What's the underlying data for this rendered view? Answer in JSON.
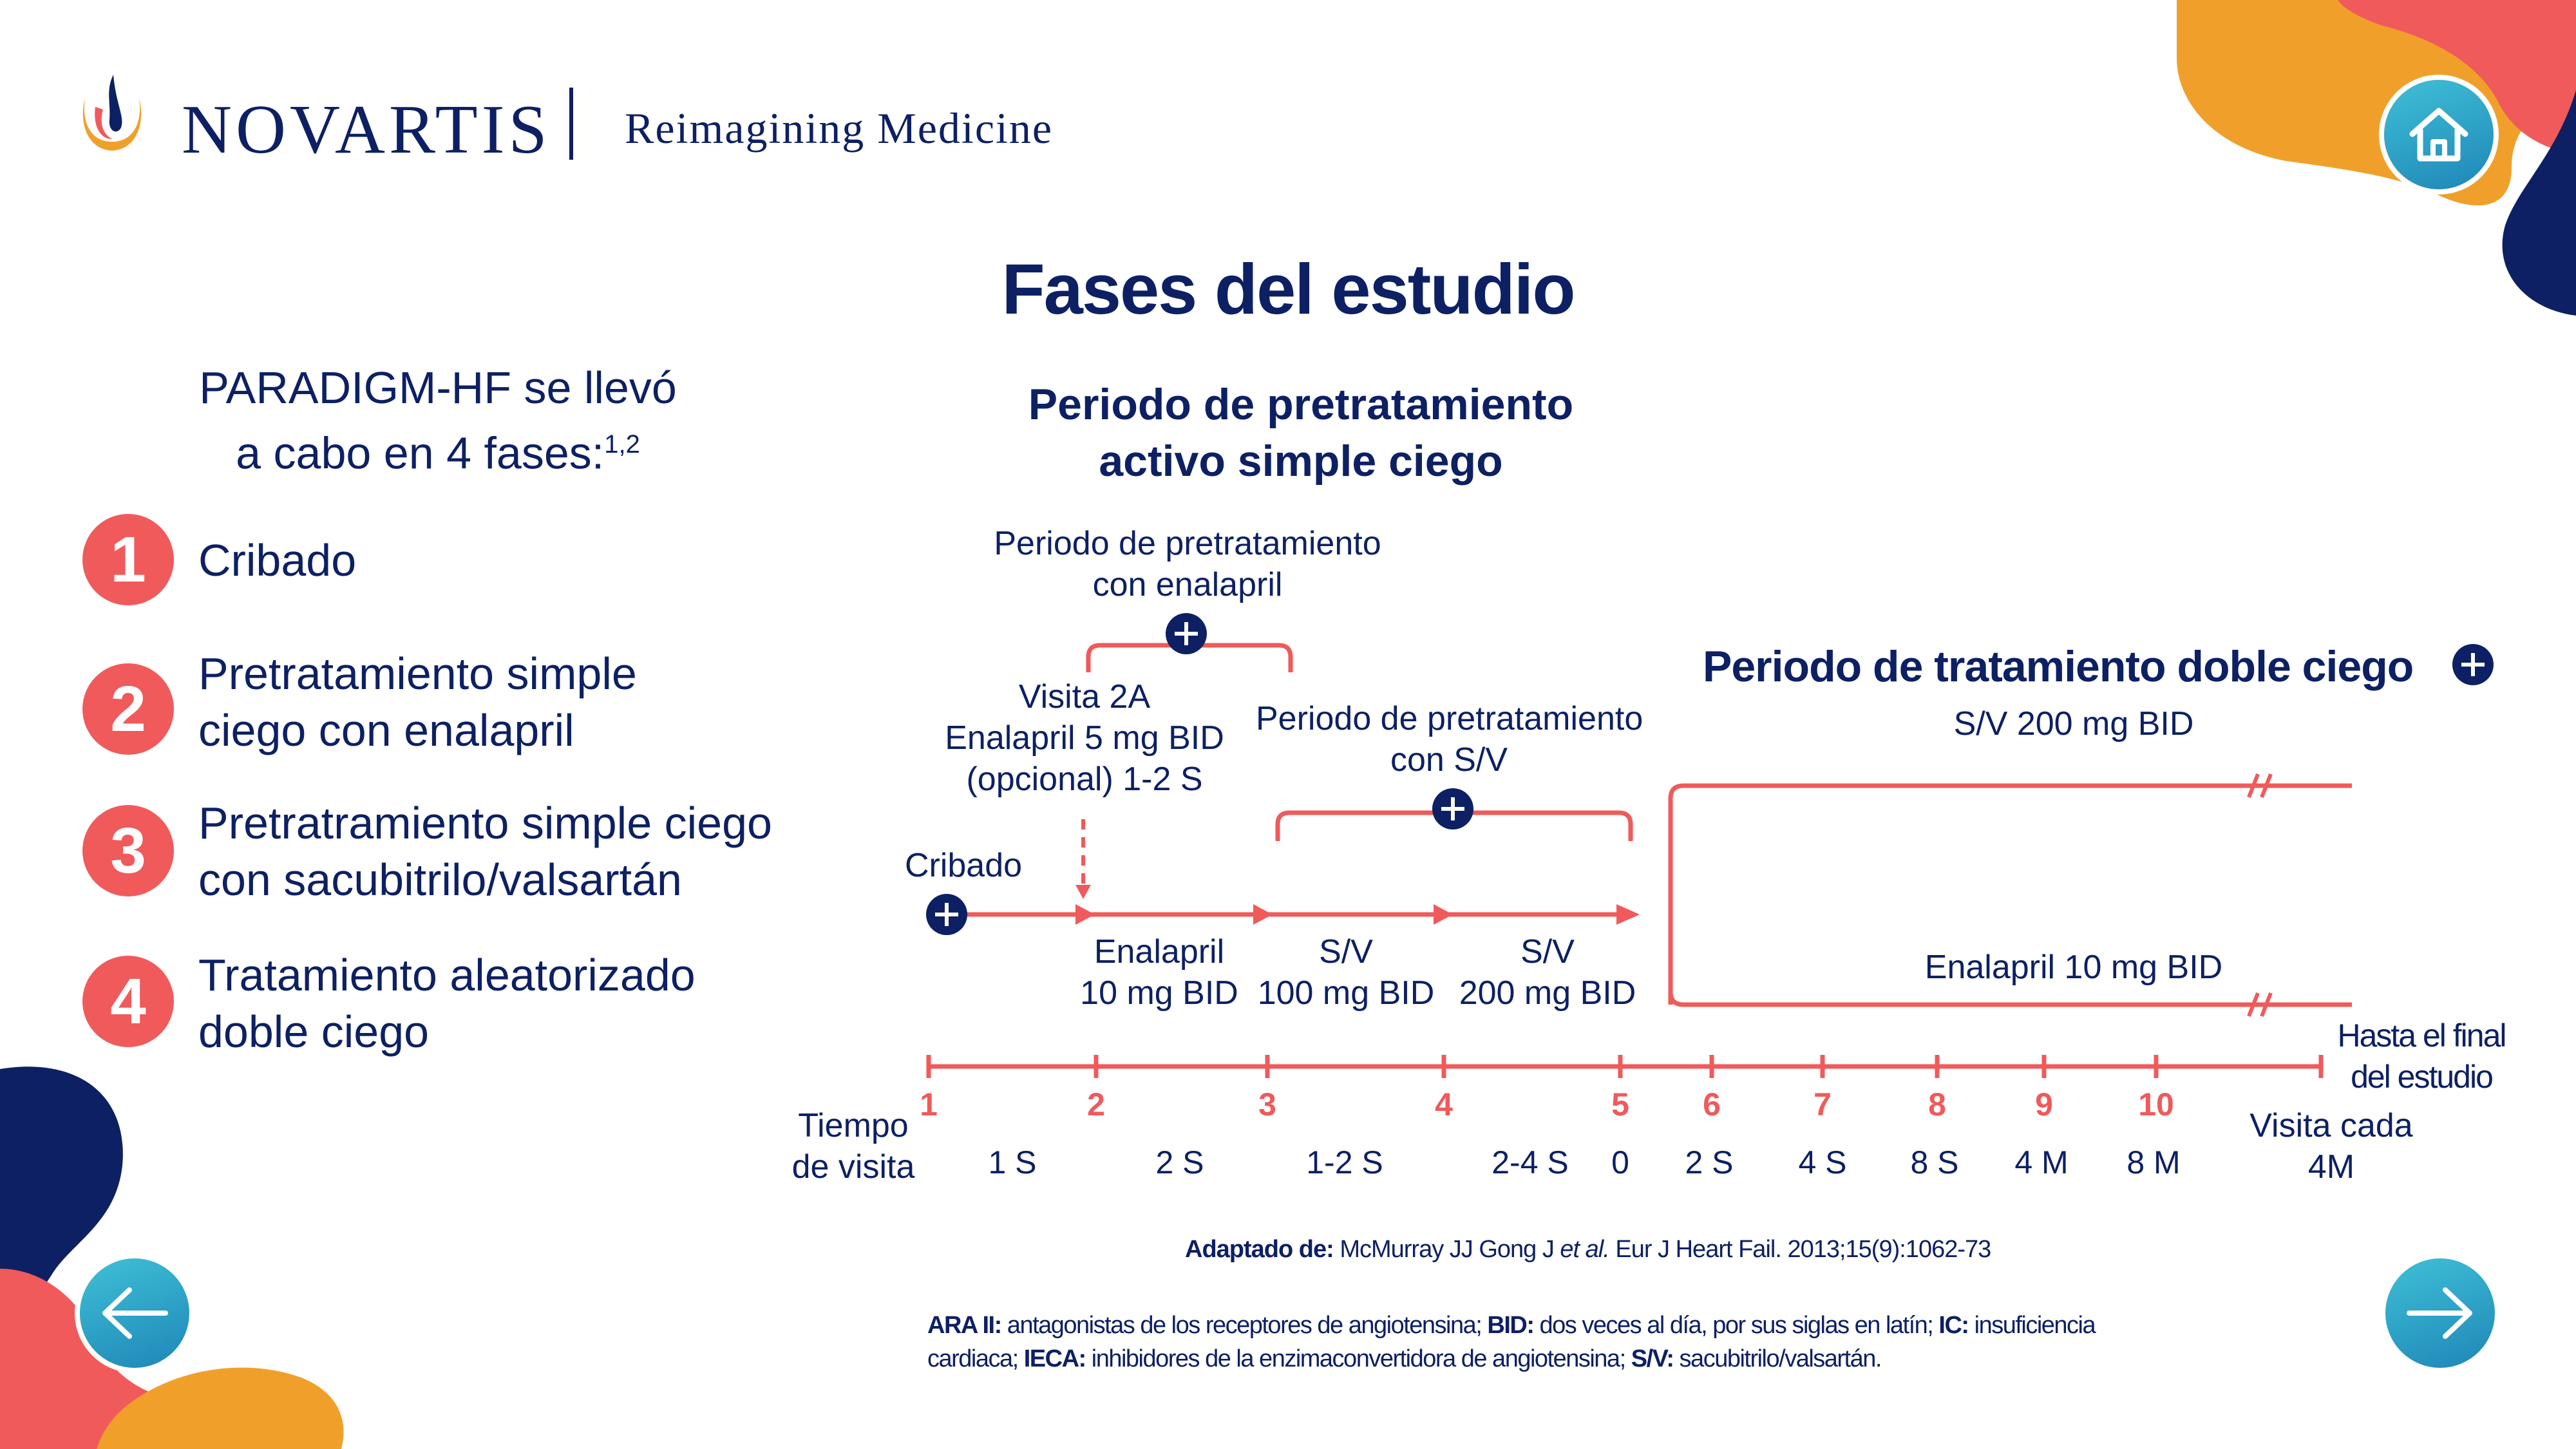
{
  "header": {
    "brand": "NOVARTIS",
    "separator": "|",
    "tagline": "Reimagining Medicine"
  },
  "title": "Fases del estudio",
  "left": {
    "intro_line1": "PARADIGM-HF se llevó",
    "intro_line2": "a cabo en 4 fases:",
    "intro_sup": "1,2",
    "phases": [
      {
        "num": "1",
        "line1": "Cribado",
        "line2": ""
      },
      {
        "num": "2",
        "line1": "Pretratamiento simple",
        "line2": "ciego con enalapril"
      },
      {
        "num": "3",
        "line1": "Pretratramiento simple ciego",
        "line2": "con sacubitrilo/valsartán"
      },
      {
        "num": "4",
        "line1": "Tratamiento aleatorizado",
        "line2": "doble ciego"
      }
    ]
  },
  "diagram": {
    "active_title_l1": "Periodo de pretratamiento",
    "active_title_l2": "activo simple ciego",
    "enalapril_period_l1": "Periodo de pretratamiento",
    "enalapril_period_l2": "con enalapril",
    "visit2a_l1": "Visita 2A",
    "visit2a_l2": "Enalapril 5 mg BID",
    "visit2a_l3": "(opcional) 1-2 S",
    "sv_period_l1": "Periodo de pretratamiento",
    "sv_period_l2": "con S/V",
    "screening": "Cribado",
    "dose1_l1": "Enalapril",
    "dose1_l2": "10 mg BID",
    "dose2_l1": "S/V",
    "dose2_l2": "100 mg BID",
    "dose3_l1": "S/V",
    "dose3_l2": "200 mg BID",
    "double_blind_title": "Periodo de tratamiento doble ciego",
    "arm_sv": "S/V 200 mg BID",
    "arm_enalapril": "Enalapril 10 mg BID",
    "end_l1": "Hasta el final",
    "end_l2": "del estudio",
    "visit_time_l1": "Tiempo",
    "visit_time_l2": "de visita",
    "visit_every_l1": "Visita cada",
    "visit_every_l2": "4M",
    "ticks": [
      "1",
      "2",
      "3",
      "4",
      "5",
      "6",
      "7",
      "8",
      "9",
      "10"
    ],
    "durations": [
      "1 S",
      "2 S",
      "1-2 S",
      "2-4 S",
      "0",
      "2 S",
      "4 S",
      "8 S",
      "4 M",
      "8 M"
    ]
  },
  "footer": {
    "adapted_label": "Adaptado de:",
    "adapted_text1": " McMurray JJ Gong J ",
    "adapted_etal": "et al.",
    "adapted_text2": " Eur J Heart Fail. 2013;15(9):1062-73",
    "abbr1_label": "ARA II:",
    "abbr1_text": " antagonistas de los receptores de angiotensina; ",
    "abbr2_label": "BID:",
    "abbr2_text": " dos veces al día, por sus siglas en latín; ",
    "abbr3_label": "IC:",
    "abbr3_text": " insuficiencia",
    "abbr3_cont": "cardiaca; ",
    "abbr4_label": "IECA:",
    "abbr4_text": " inhibidores de la enzimaconvertidora de angiotensina; ",
    "abbr5_label": "S/V:",
    "abbr5_text": " sacubitrilo/valsartán."
  },
  "colors": {
    "navy": "#0d2063",
    "coral": "#f05a5b",
    "orange": "#f0a02a",
    "teal": "#2aa7c9"
  },
  "icons": {
    "home": "home-icon",
    "prev": "arrow-left-icon",
    "next": "arrow-right-icon",
    "plus": "plus-circle-icon"
  }
}
